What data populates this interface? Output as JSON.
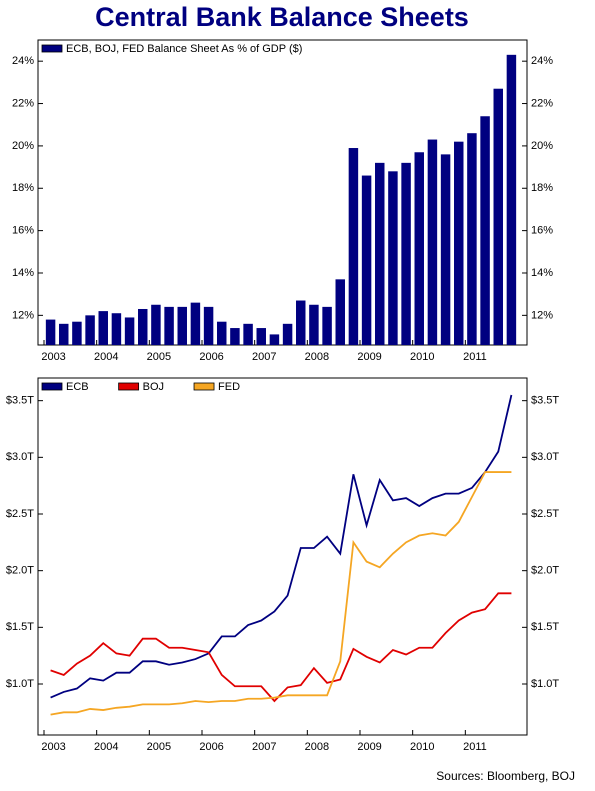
{
  "chart_data": [
    {
      "type": "bar",
      "title": "Central Bank Balance Sheets",
      "categories": [
        "2003",
        null,
        null,
        null,
        "2004",
        null,
        null,
        null,
        "2005",
        null,
        null,
        null,
        "2006",
        null,
        null,
        null,
        "2007",
        null,
        null,
        null,
        "2008",
        null,
        null,
        null,
        "2009",
        null,
        null,
        null,
        "2010",
        null,
        null,
        null,
        "2011",
        null,
        null,
        null
      ],
      "series": [
        {
          "name": "ECB, BOJ, FED Balance Sheet As % of GDP ($)",
          "color": "#000080",
          "values": [
            11.8,
            11.6,
            11.7,
            12.0,
            12.2,
            12.1,
            11.9,
            12.3,
            12.5,
            12.4,
            12.4,
            12.6,
            12.4,
            11.7,
            11.4,
            11.6,
            11.4,
            11.1,
            11.6,
            12.7,
            12.5,
            12.4,
            13.7,
            19.9,
            18.6,
            19.2,
            18.8,
            19.2,
            19.7,
            20.3,
            19.6,
            20.2,
            20.6,
            21.4,
            22.7,
            24.3
          ]
        }
      ],
      "ylim": [
        10.6,
        25
      ],
      "yticks": [
        {
          "value": 12,
          "label": "12%"
        },
        {
          "value": 14,
          "label": "14%"
        },
        {
          "value": 16,
          "label": "16%"
        },
        {
          "value": 18,
          "label": "18%"
        },
        {
          "value": 20,
          "label": "20%"
        },
        {
          "value": 22,
          "label": "22%"
        },
        {
          "value": 24,
          "label": "24%"
        }
      ],
      "grid": false
    },
    {
      "type": "line",
      "source": "Sources: Bloomberg, BOJ",
      "categories": [
        "2003",
        null,
        null,
        null,
        "2004",
        null,
        null,
        null,
        "2005",
        null,
        null,
        null,
        "2006",
        null,
        null,
        null,
        "2007",
        null,
        null,
        null,
        "2008",
        null,
        null,
        null,
        "2009",
        null,
        null,
        null,
        "2010",
        null,
        null,
        null,
        "2011",
        null,
        null,
        null
      ],
      "series": [
        {
          "name": "ECB",
          "color": "#000080",
          "values": [
            0.88,
            0.93,
            0.96,
            1.05,
            1.03,
            1.1,
            1.1,
            1.2,
            1.2,
            1.17,
            1.19,
            1.22,
            1.27,
            1.42,
            1.42,
            1.52,
            1.56,
            1.64,
            1.78,
            2.2,
            2.2,
            2.3,
            2.15,
            2.85,
            2.4,
            2.8,
            2.62,
            2.64,
            2.57,
            2.64,
            2.68,
            2.68,
            2.73,
            2.87,
            3.05,
            3.55
          ]
        },
        {
          "name": "BOJ",
          "color": "#e00000",
          "values": [
            1.12,
            1.08,
            1.18,
            1.25,
            1.36,
            1.27,
            1.25,
            1.4,
            1.4,
            1.32,
            1.32,
            1.3,
            1.28,
            1.08,
            0.98,
            0.98,
            0.98,
            0.85,
            0.97,
            0.99,
            1.14,
            1.01,
            1.04,
            1.31,
            1.24,
            1.19,
            1.3,
            1.26,
            1.32,
            1.32,
            1.45,
            1.56,
            1.63,
            1.66,
            1.8,
            1.8
          ]
        },
        {
          "name": "FED",
          "color": "#f5a623",
          "values": [
            0.73,
            0.75,
            0.75,
            0.78,
            0.77,
            0.79,
            0.8,
            0.82,
            0.82,
            0.82,
            0.83,
            0.85,
            0.84,
            0.85,
            0.85,
            0.87,
            0.87,
            0.88,
            0.9,
            0.9,
            0.9,
            0.9,
            1.2,
            2.25,
            2.08,
            2.03,
            2.15,
            2.25,
            2.31,
            2.33,
            2.31,
            2.43,
            2.65,
            2.87,
            2.87,
            2.87
          ]
        }
      ],
      "ylim": [
        0.55,
        3.7
      ],
      "yticks": [
        {
          "value": 1.0,
          "label": "$1.0T"
        },
        {
          "value": 1.5,
          "label": "$1.5T"
        },
        {
          "value": 2.0,
          "label": "$2.0T"
        },
        {
          "value": 2.5,
          "label": "$2.5T"
        },
        {
          "value": 3.0,
          "label": "$3.0T"
        },
        {
          "value": 3.5,
          "label": "$3.5T"
        }
      ],
      "grid": false
    }
  ]
}
